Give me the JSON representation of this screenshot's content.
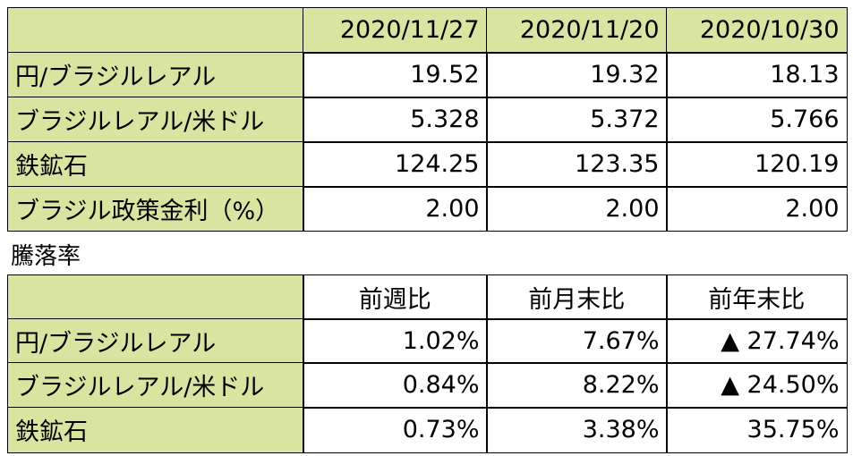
{
  "table1": {
    "header": [
      "2020/11/27",
      "2020/11/20",
      "2020/10/30"
    ],
    "rows": [
      [
        "円/ブラジルレアル",
        "19.52",
        "19.32",
        "18.13"
      ],
      [
        "ブラジルレアル/米ドル",
        "5.328",
        "5.372",
        "5.766"
      ],
      [
        "鉄鉱石",
        "124.25",
        "123.35",
        "120.19"
      ],
      [
        "ブラジル政策金利（%）",
        "2.00",
        "2.00",
        "2.00"
      ]
    ]
  },
  "caption": "騰落率",
  "table2": {
    "header": [
      "前週比",
      "前月末比",
      "前年末比"
    ],
    "rows": [
      [
        "円/ブラジルレアル",
        "1.02%",
        "7.67%",
        "▲ 27.74%"
      ],
      [
        "ブラジルレアル/米ドル",
        "0.84%",
        "8.22%",
        "▲ 24.50%"
      ],
      [
        "鉄鉱石",
        "0.73%",
        "3.38%",
        "35.75%"
      ]
    ]
  }
}
